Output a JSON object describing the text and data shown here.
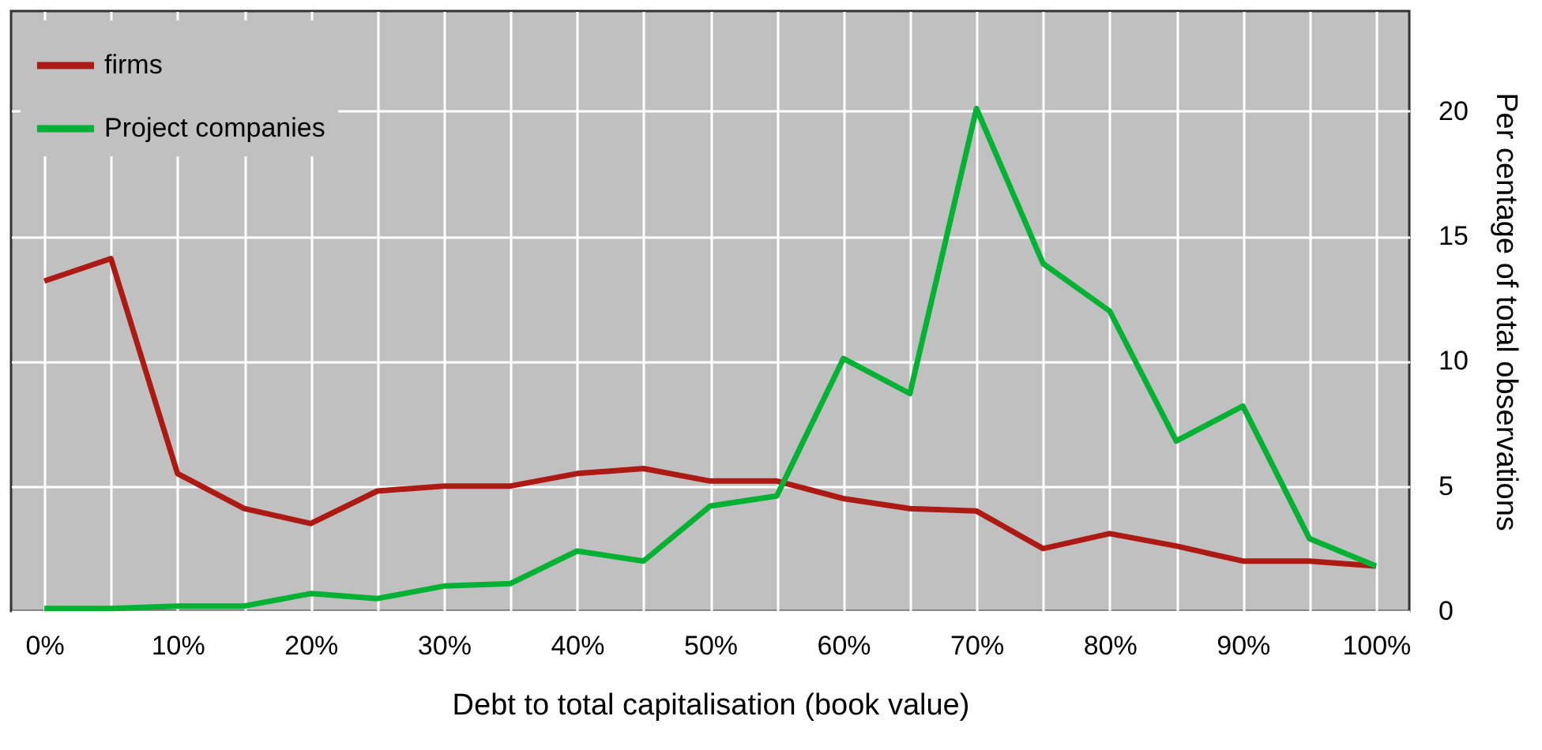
{
  "chart_data": {
    "type": "line",
    "xlabel": "Debt to total capitalisation (book value)",
    "ylabel": "Per centage of total observations",
    "categories": [
      "0%",
      null,
      "10%",
      null,
      "20%",
      null,
      "30%",
      null,
      "40%",
      null,
      "50%",
      null,
      "60%",
      null,
      "70%",
      null,
      "80%",
      null,
      "90%",
      null,
      "100%"
    ],
    "series": [
      {
        "name": "firms",
        "color": "#ad1a14",
        "values": [
          13.2,
          14.1,
          5.5,
          4.1,
          3.5,
          4.8,
          5.0,
          5.0,
          5.5,
          5.7,
          5.2,
          5.2,
          4.5,
          4.1,
          4.0,
          2.5,
          3.1,
          2.6,
          2.0,
          2.0,
          1.8
        ]
      },
      {
        "name": "Project companies",
        "color": "#00b233",
        "values": [
          0.1,
          0.1,
          0.2,
          0.2,
          0.7,
          0.5,
          1.0,
          1.1,
          2.4,
          2.0,
          4.2,
          4.6,
          10.1,
          8.7,
          20.1,
          13.9,
          12.0,
          6.8,
          8.2,
          2.9,
          1.8
        ]
      }
    ],
    "ylim": [
      0,
      24
    ],
    "yticks": [
      0,
      5,
      10,
      15,
      20
    ],
    "grid": true,
    "legend": "top left",
    "marker": "none",
    "line_style": "solid"
  }
}
